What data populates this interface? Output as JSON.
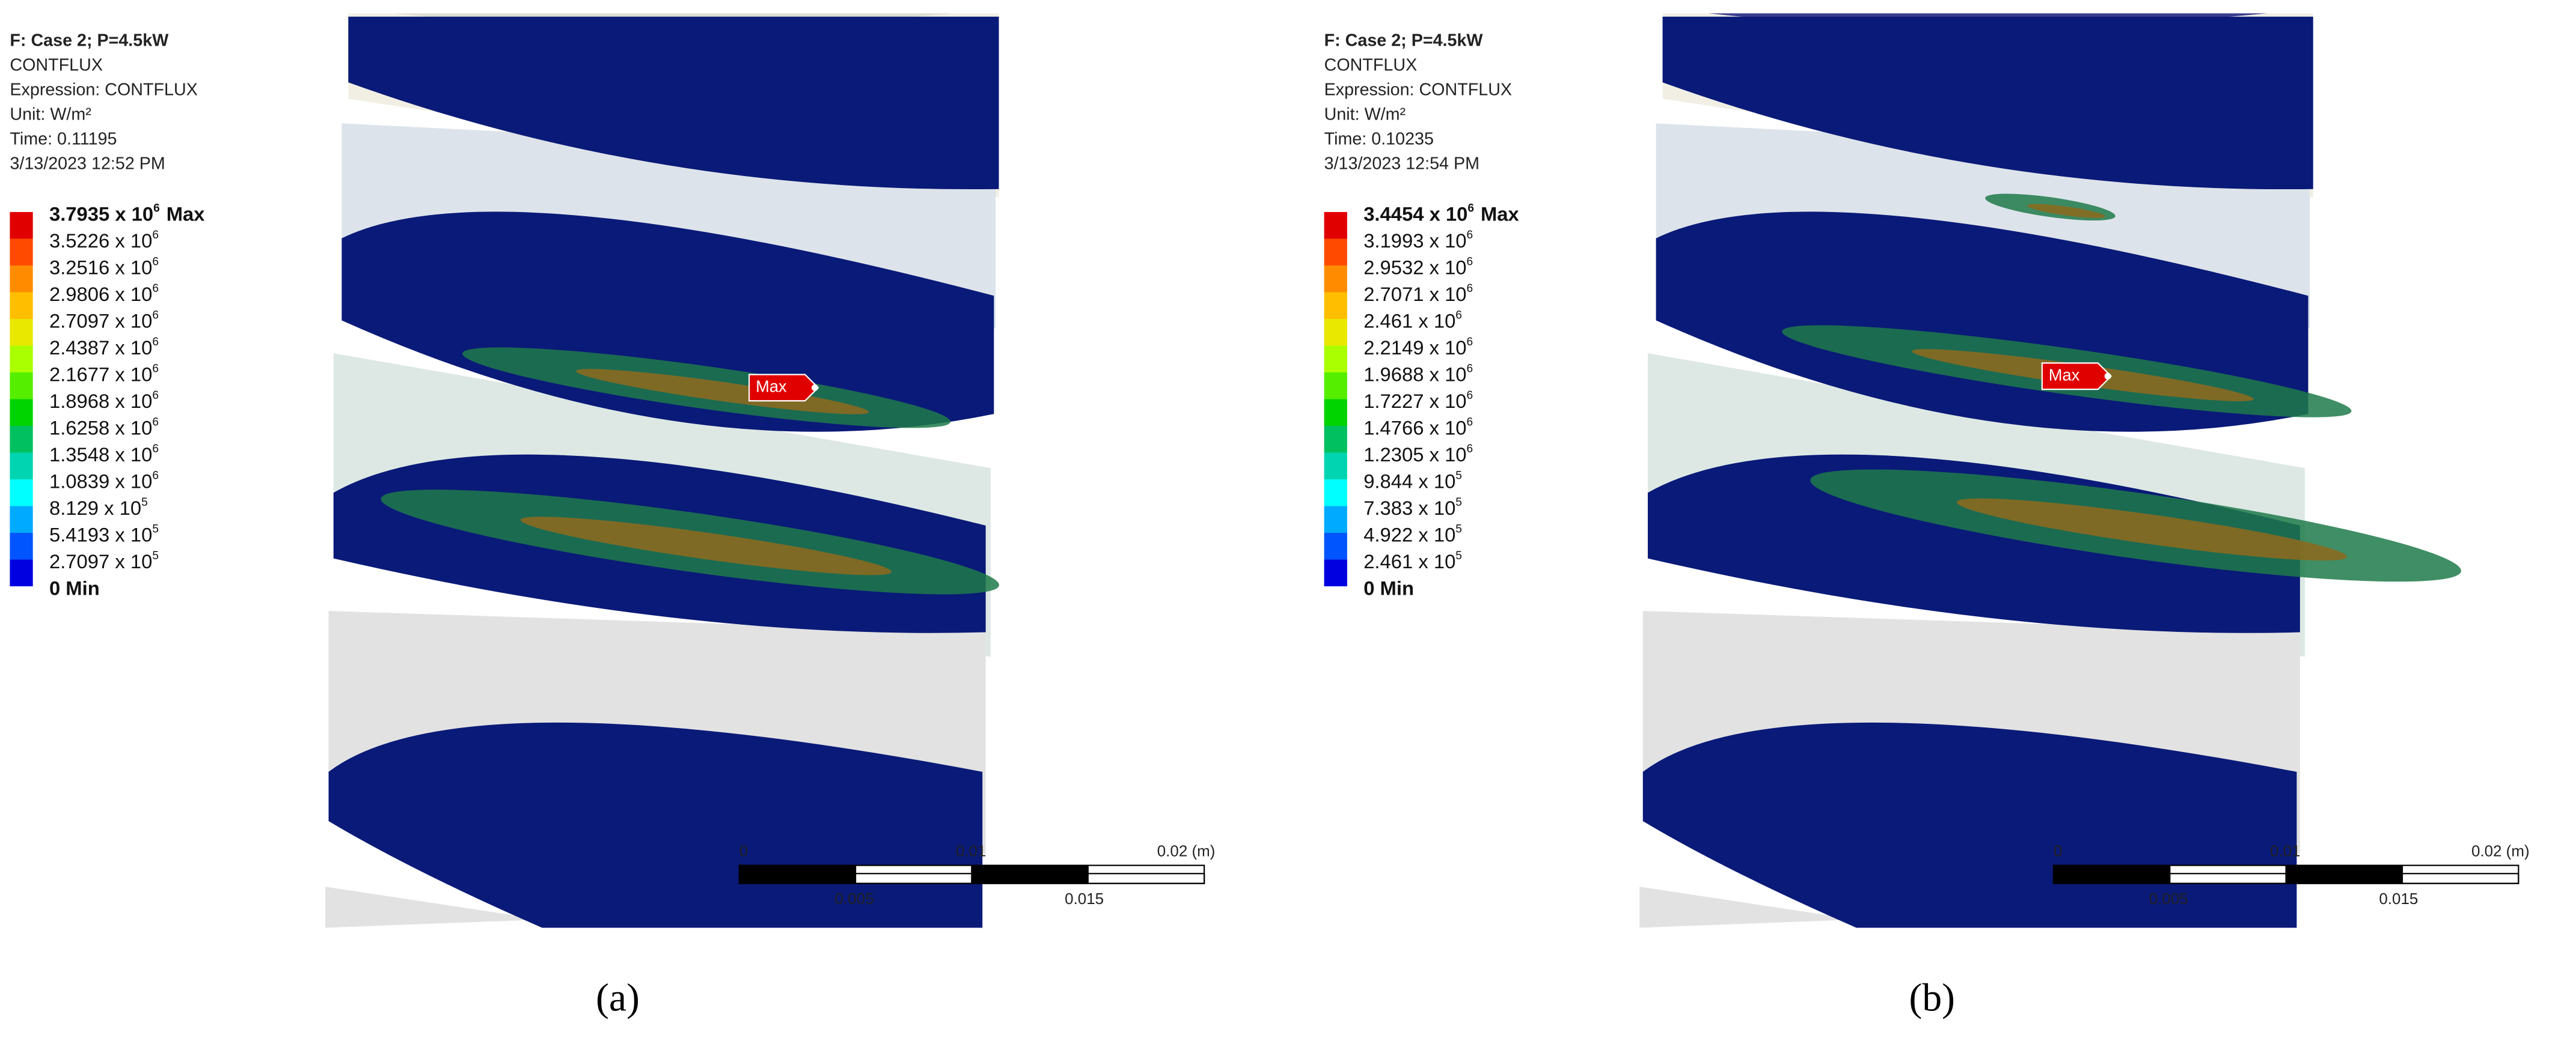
{
  "panels": [
    {
      "header": [
        "F: Case 2; P=4.5kW",
        "CONTFLUX",
        "Expression: CONTFLUX",
        "Unit: W/m²",
        "Time: 0.11195",
        "3/13/2023 12:52 PM"
      ],
      "legend": [
        {
          "base": "3.7935 x 10",
          "exponent": "6",
          "suffix": "Max"
        },
        {
          "base": "3.5226 x 10",
          "exponent": "6"
        },
        {
          "base": "3.2516 x 10",
          "exponent": "6"
        },
        {
          "base": "2.9806 x 10",
          "exponent": "6"
        },
        {
          "base": "2.7097 x 10",
          "exponent": "6"
        },
        {
          "base": "2.4387 x 10",
          "exponent": "6"
        },
        {
          "base": "2.1677 x 10",
          "exponent": "6"
        },
        {
          "base": "1.8968 x 10",
          "exponent": "6"
        },
        {
          "base": "1.6258 x 10",
          "exponent": "6"
        },
        {
          "base": "1.3548 x 10",
          "exponent": "6"
        },
        {
          "base": "1.0839 x 10",
          "exponent": "6"
        },
        {
          "base": "8.129 x 10",
          "exponent": "5"
        },
        {
          "base": "5.4193 x 10",
          "exponent": "5"
        },
        {
          "base": "2.7097 x 10",
          "exponent": "5"
        },
        {
          "base": "0 Min"
        }
      ],
      "max_marker": "Max",
      "scale_top": [
        "0",
        "0.01",
        "0.02 (m)"
      ],
      "scale_bottom": [
        "0.005",
        "0.015"
      ],
      "caption": "(a)"
    },
    {
      "header": [
        "F: Case 2; P=4.5kW",
        "CONTFLUX",
        "Expression: CONTFLUX",
        "Unit: W/m²",
        "Time: 0.10235",
        "3/13/2023 12:54 PM"
      ],
      "legend": [
        {
          "base": "3.4454 x 10",
          "exponent": "6",
          "suffix": "Max"
        },
        {
          "base": "3.1993 x 10",
          "exponent": "6"
        },
        {
          "base": "2.9532 x 10",
          "exponent": "6"
        },
        {
          "base": "2.7071 x 10",
          "exponent": "6"
        },
        {
          "base": "2.461 x 10",
          "exponent": "6"
        },
        {
          "base": "2.2149 x 10",
          "exponent": "6"
        },
        {
          "base": "1.9688 x 10",
          "exponent": "6"
        },
        {
          "base": "1.7227 x 10",
          "exponent": "6"
        },
        {
          "base": "1.4766 x 10",
          "exponent": "6"
        },
        {
          "base": "1.2305 x 10",
          "exponent": "6"
        },
        {
          "base": "9.844 x 10",
          "exponent": "5"
        },
        {
          "base": "7.383 x 10",
          "exponent": "5"
        },
        {
          "base": "4.922 x 10",
          "exponent": "5"
        },
        {
          "base": "2.461 x 10",
          "exponent": "5"
        },
        {
          "base": "0 Min"
        }
      ],
      "max_marker": "Max",
      "scale_top": [
        "0",
        "0.01",
        "0.02 (m)"
      ],
      "scale_bottom": [
        "0.005",
        "0.015"
      ],
      "caption": "(b)"
    }
  ]
}
